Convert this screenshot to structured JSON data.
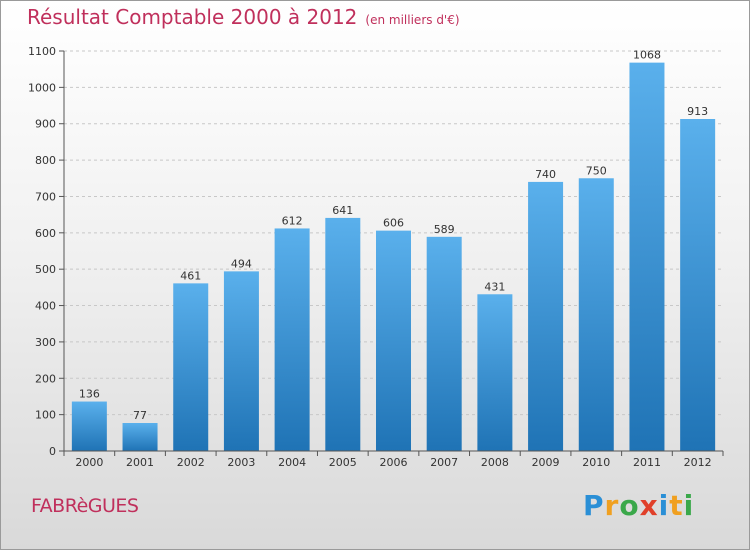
{
  "header": {
    "title": "Résultat Comptable 2000 à 2012",
    "subtitle": "(en milliers d'€)"
  },
  "footer": {
    "city": "FABRèGUES",
    "brand_letters": [
      {
        "char": "P",
        "color": "#2a8fd6"
      },
      {
        "char": "r",
        "color": "#f0a020"
      },
      {
        "char": "o",
        "color": "#3aa84a"
      },
      {
        "char": "x",
        "color": "#e0402a"
      },
      {
        "char": "i",
        "color": "#2a8fd6"
      },
      {
        "char": "t",
        "color": "#f0a020"
      },
      {
        "char": "i",
        "color": "#3aa84a"
      }
    ]
  },
  "colors": {
    "accent": "#c0305c",
    "bar_top": "#5ab0ec",
    "bar_bottom": "#1f73b5"
  },
  "chart_data": {
    "type": "bar",
    "title": "Résultat Comptable 2000 à 2012",
    "subtitle": "(en milliers d'€)",
    "categories": [
      "2000",
      "2001",
      "2002",
      "2003",
      "2004",
      "2005",
      "2006",
      "2007",
      "2008",
      "2009",
      "2010",
      "2011",
      "2012"
    ],
    "values": [
      136,
      77,
      461,
      494,
      612,
      641,
      606,
      589,
      431,
      740,
      750,
      1068,
      913
    ],
    "ylim": [
      0,
      1100
    ],
    "yticks": [
      0,
      100,
      200,
      300,
      400,
      500,
      600,
      700,
      800,
      900,
      1000,
      1100
    ],
    "grid": true,
    "legend": "none"
  }
}
